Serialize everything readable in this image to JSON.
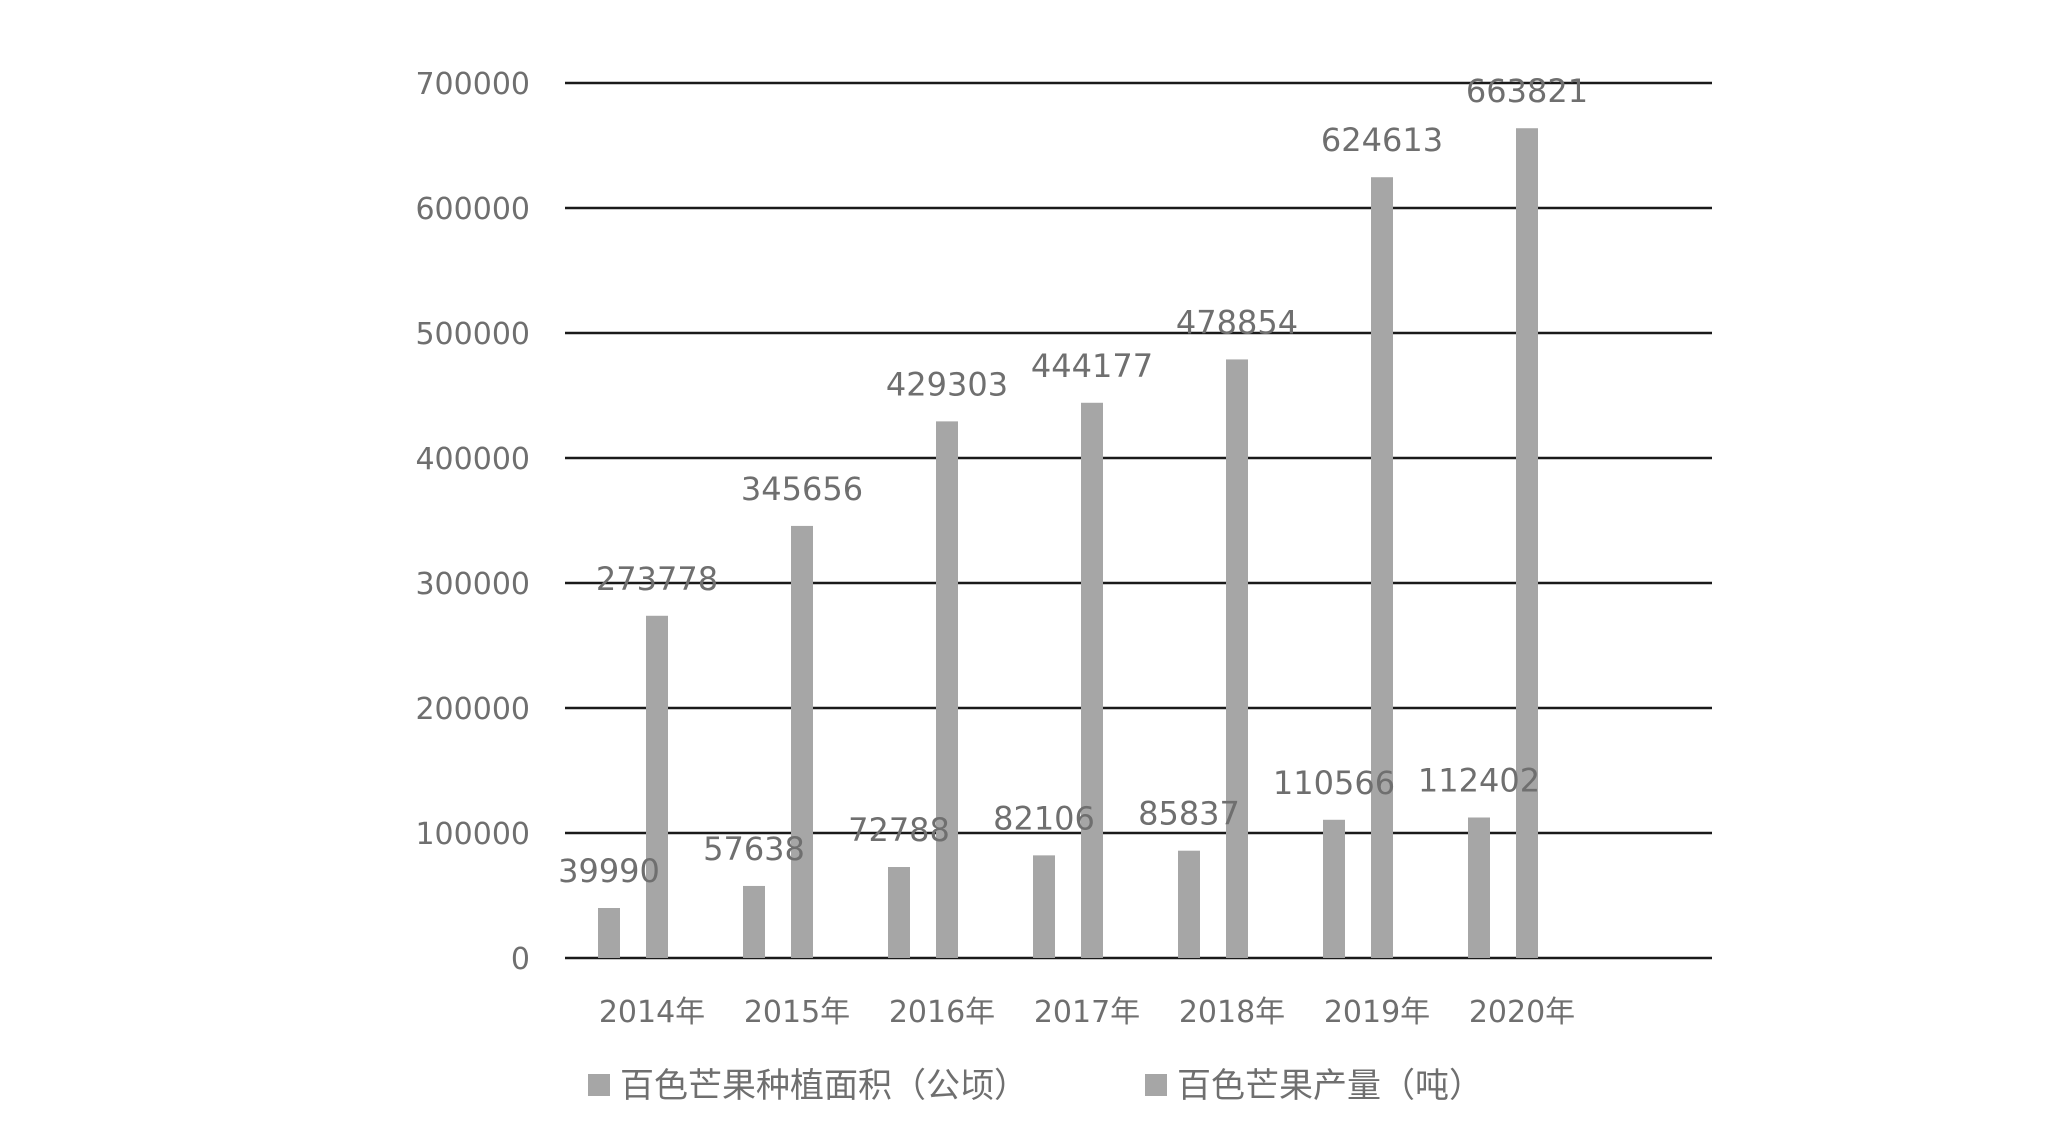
{
  "chart_data": {
    "type": "bar",
    "title": "",
    "xlabel": "",
    "ylabel": "",
    "categories": [
      "2014年",
      "2015年",
      "2016年",
      "2017年",
      "2018年",
      "2019年",
      "2020年"
    ],
    "series": [
      {
        "name": "百色芒果种植面积（公顷）",
        "values": [
          39990,
          57638,
          72788,
          82106,
          85837,
          110566,
          112402
        ],
        "color": "#a6a6a6"
      },
      {
        "name": "百色芒果产量（吨）",
        "values": [
          273778,
          345656,
          429303,
          444177,
          478854,
          624613,
          663821
        ],
        "color": "#a6a6a6"
      }
    ],
    "ylim": [
      0,
      700000
    ],
    "yticks": [
      "0",
      "100000",
      "200000",
      "300000",
      "400000",
      "500000",
      "600000",
      "700000"
    ],
    "grid": true,
    "legend_position": "bottom",
    "data_labels": true
  }
}
